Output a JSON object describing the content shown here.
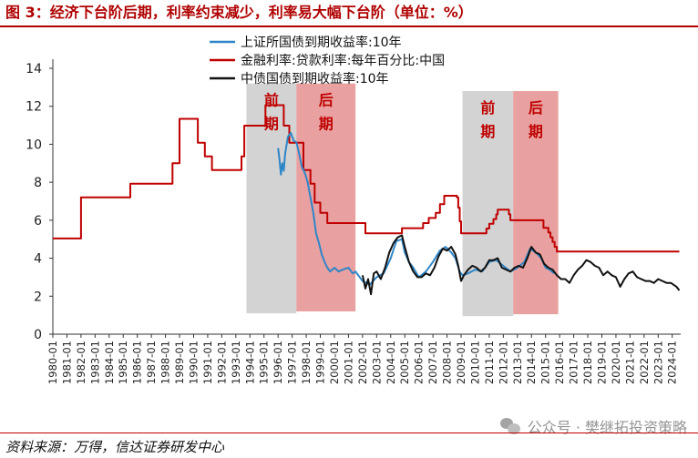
{
  "header": {
    "title": "图 3：经济下台阶后期，利率约束减少，利率易大幅下台阶（单位：%）"
  },
  "footer": {
    "source": "资料来源：万得，信达证券研发中心",
    "watermark": "公众号 · 樊继拓投资策略"
  },
  "chart_data": {
    "type": "line",
    "title": "图 3：经济下台阶后期，利率约束减少，利率易大幅下台阶（单位：%）",
    "xlabel": "",
    "ylabel": "",
    "ylim": [
      0,
      14
    ],
    "yticks": [
      0,
      2,
      4,
      6,
      8,
      10,
      12,
      14
    ],
    "xlim": [
      1980,
      2024.6
    ],
    "categories": [
      "1980-01",
      "1981-01",
      "1982-01",
      "1983-01",
      "1984-01",
      "1985-01",
      "1986-01",
      "1987-01",
      "1988-01",
      "1989-01",
      "1990-01",
      "1991-01",
      "1992-01",
      "1993-01",
      "1994-01",
      "1995-01",
      "1996-01",
      "1997-01",
      "1998-01",
      "1999-01",
      "2000-01",
      "2001-01",
      "2002-01",
      "2003-01",
      "2004-01",
      "2005-01",
      "2006-01",
      "2007-01",
      "2008-01",
      "2009-01",
      "2010-01",
      "2011-01",
      "2012-01",
      "2013-01",
      "2014-01",
      "2015-01",
      "2016-01",
      "2017-01",
      "2018-01",
      "2019-01",
      "2020-01",
      "2021-01",
      "2022-01",
      "2023-01",
      "2024-01"
    ],
    "legend": {
      "placement": "top",
      "items": [
        "上证所国债到期收益率:10年",
        "金融利率:贷款利率:每年百分比:中国",
        "中债国债到期收益率:10年"
      ]
    },
    "shaded_periods": [
      {
        "label_top": "前",
        "label_bottom": "期",
        "x0": 1993.75,
        "x1": 1997.3,
        "y0": 1.1,
        "y1": 13.2,
        "color": "#d3d3d3"
      },
      {
        "label_top": "后",
        "label_bottom": "期",
        "x0": 1997.3,
        "x1": 2001.5,
        "y0": 1.2,
        "y1": 13.2,
        "color": "#e8a0a0"
      },
      {
        "label_top": "前",
        "label_bottom": "期",
        "x0": 2009.1,
        "x1": 2012.7,
        "y0": 0.95,
        "y1": 12.8,
        "color": "#d3d3d3"
      },
      {
        "label_top": "后",
        "label_bottom": "期",
        "x0": 2012.7,
        "x1": 2015.9,
        "y0": 1.05,
        "y1": 12.8,
        "color": "#e8a0a0"
      }
    ],
    "series": [
      {
        "name": "金融利率:贷款利率:每年百分比:中国",
        "color": "#c00000",
        "points": [
          [
            1980,
            5.04
          ],
          [
            1982,
            5.04
          ],
          [
            1982,
            7.2
          ],
          [
            1985.5,
            7.2
          ],
          [
            1985.5,
            7.92
          ],
          [
            1988.5,
            7.92
          ],
          [
            1988.5,
            9.0
          ],
          [
            1989,
            9.0
          ],
          [
            1989,
            11.34
          ],
          [
            1990.3,
            11.34
          ],
          [
            1990.3,
            10.08
          ],
          [
            1990.8,
            10.08
          ],
          [
            1990.8,
            9.36
          ],
          [
            1991.3,
            9.36
          ],
          [
            1991.3,
            8.64
          ],
          [
            1993.4,
            8.64
          ],
          [
            1993.4,
            9.36
          ],
          [
            1993.6,
            9.36
          ],
          [
            1993.6,
            10.98
          ],
          [
            1995.1,
            10.98
          ],
          [
            1995.1,
            12.06
          ],
          [
            1996.4,
            12.06
          ],
          [
            1996.4,
            10.98
          ],
          [
            1996.8,
            10.98
          ],
          [
            1996.8,
            10.08
          ],
          [
            1997.8,
            10.08
          ],
          [
            1997.8,
            8.64
          ],
          [
            1998.3,
            8.64
          ],
          [
            1998.3,
            7.92
          ],
          [
            1998.6,
            7.92
          ],
          [
            1998.6,
            6.93
          ],
          [
            1999.0,
            6.93
          ],
          [
            1999.0,
            6.39
          ],
          [
            1999.5,
            6.39
          ],
          [
            1999.5,
            5.85
          ],
          [
            2002.2,
            5.85
          ],
          [
            2002.2,
            5.31
          ],
          [
            2004.8,
            5.31
          ],
          [
            2004.8,
            5.58
          ],
          [
            2006.3,
            5.58
          ],
          [
            2006.3,
            5.85
          ],
          [
            2006.7,
            5.85
          ],
          [
            2006.7,
            6.12
          ],
          [
            2007.2,
            6.12
          ],
          [
            2007.2,
            6.39
          ],
          [
            2007.5,
            6.39
          ],
          [
            2007.5,
            6.84
          ],
          [
            2007.8,
            6.84
          ],
          [
            2007.8,
            7.29
          ],
          [
            2008.7,
            7.29
          ],
          [
            2008.7,
            7.2
          ],
          [
            2008.8,
            7.2
          ],
          [
            2008.8,
            6.66
          ],
          [
            2008.9,
            6.66
          ],
          [
            2008.9,
            5.94
          ],
          [
            2009.0,
            5.94
          ],
          [
            2009.0,
            5.31
          ],
          [
            2010.8,
            5.31
          ],
          [
            2010.8,
            5.56
          ],
          [
            2011.0,
            5.56
          ],
          [
            2011.0,
            5.81
          ],
          [
            2011.3,
            5.81
          ],
          [
            2011.3,
            6.06
          ],
          [
            2011.5,
            6.06
          ],
          [
            2011.5,
            6.31
          ],
          [
            2011.6,
            6.31
          ],
          [
            2011.6,
            6.56
          ],
          [
            2012.4,
            6.56
          ],
          [
            2012.4,
            6.31
          ],
          [
            2012.5,
            6.31
          ],
          [
            2012.5,
            6.0
          ],
          [
            2014.85,
            6.0
          ],
          [
            2014.85,
            5.6
          ],
          [
            2015.2,
            5.6
          ],
          [
            2015.2,
            5.35
          ],
          [
            2015.35,
            5.35
          ],
          [
            2015.35,
            5.1
          ],
          [
            2015.5,
            5.1
          ],
          [
            2015.5,
            4.85
          ],
          [
            2015.65,
            4.85
          ],
          [
            2015.65,
            4.6
          ],
          [
            2015.8,
            4.6
          ],
          [
            2015.8,
            4.35
          ],
          [
            2024.5,
            4.35
          ]
        ]
      },
      {
        "name": "上证所国债到期收益率:10年",
        "color": "#2e86c8",
        "points": [
          [
            1996.0,
            9.8
          ],
          [
            1996.1,
            9.2
          ],
          [
            1996.2,
            8.4
          ],
          [
            1996.3,
            9.0
          ],
          [
            1996.4,
            8.6
          ],
          [
            1996.5,
            9.5
          ],
          [
            1996.7,
            10.4
          ],
          [
            1996.9,
            10.6
          ],
          [
            1997.1,
            10.2
          ],
          [
            1997.3,
            10.1
          ],
          [
            1997.5,
            9.5
          ],
          [
            1997.7,
            8.8
          ],
          [
            1997.9,
            8.5
          ],
          [
            1998.1,
            8.0
          ],
          [
            1998.3,
            7.2
          ],
          [
            1998.5,
            6.4
          ],
          [
            1998.7,
            5.3
          ],
          [
            1998.9,
            4.8
          ],
          [
            1999.1,
            4.2
          ],
          [
            1999.3,
            3.8
          ],
          [
            1999.5,
            3.5
          ],
          [
            1999.7,
            3.3
          ],
          [
            2000.0,
            3.5
          ],
          [
            2000.3,
            3.3
          ],
          [
            2000.6,
            3.4
          ],
          [
            2001.0,
            3.5
          ],
          [
            2001.3,
            3.2
          ],
          [
            2001.5,
            3.3
          ],
          [
            2002.0,
            2.8
          ],
          [
            2002.5,
            2.6
          ],
          [
            2003.0,
            3.0
          ],
          [
            2003.5,
            3.2
          ],
          [
            2004.0,
            4.0
          ],
          [
            2004.4,
            4.9
          ],
          [
            2004.8,
            5.0
          ],
          [
            2005.0,
            4.3
          ],
          [
            2005.3,
            3.8
          ],
          [
            2005.6,
            3.5
          ],
          [
            2006.0,
            3.0
          ],
          [
            2006.5,
            3.3
          ],
          [
            2007.0,
            3.8
          ],
          [
            2007.5,
            4.4
          ],
          [
            2007.9,
            4.6
          ],
          [
            2008.3,
            4.3
          ],
          [
            2008.6,
            4.0
          ],
          [
            2008.9,
            3.3
          ],
          [
            2009.1,
            3.1
          ],
          [
            2009.5,
            3.2
          ],
          [
            2010.0,
            3.4
          ],
          [
            2010.5,
            3.3
          ],
          [
            2011.0,
            3.8
          ],
          [
            2011.5,
            3.9
          ],
          [
            2012.0,
            3.6
          ],
          [
            2012.5,
            3.3
          ],
          [
            2013.0,
            3.5
          ],
          [
            2013.5,
            3.8
          ],
          [
            2013.9,
            4.5
          ],
          [
            2014.3,
            4.3
          ],
          [
            2014.7,
            4.0
          ],
          [
            2015.0,
            3.5
          ],
          [
            2015.3,
            3.4
          ],
          [
            2015.6,
            3.2
          ]
        ]
      },
      {
        "name": "中债国债到期收益率:10年",
        "color": "#111111",
        "points": [
          [
            2002.0,
            3.1
          ],
          [
            2002.2,
            2.4
          ],
          [
            2002.4,
            2.9
          ],
          [
            2002.6,
            2.1
          ],
          [
            2002.8,
            3.2
          ],
          [
            2003.0,
            3.3
          ],
          [
            2003.3,
            2.9
          ],
          [
            2003.6,
            3.5
          ],
          [
            2003.9,
            4.3
          ],
          [
            2004.2,
            4.8
          ],
          [
            2004.5,
            5.1
          ],
          [
            2004.8,
            5.2
          ],
          [
            2005.0,
            4.6
          ],
          [
            2005.3,
            3.8
          ],
          [
            2005.6,
            3.3
          ],
          [
            2005.9,
            3.0
          ],
          [
            2006.2,
            3.0
          ],
          [
            2006.5,
            3.2
          ],
          [
            2006.8,
            3.1
          ],
          [
            2007.1,
            3.5
          ],
          [
            2007.4,
            4.1
          ],
          [
            2007.7,
            4.5
          ],
          [
            2008.0,
            4.4
          ],
          [
            2008.3,
            4.6
          ],
          [
            2008.6,
            4.2
          ],
          [
            2008.8,
            3.6
          ],
          [
            2009.0,
            2.8
          ],
          [
            2009.2,
            3.1
          ],
          [
            2009.5,
            3.4
          ],
          [
            2009.8,
            3.6
          ],
          [
            2010.1,
            3.5
          ],
          [
            2010.4,
            3.3
          ],
          [
            2010.7,
            3.5
          ],
          [
            2011.0,
            3.9
          ],
          [
            2011.3,
            3.9
          ],
          [
            2011.6,
            4.0
          ],
          [
            2011.9,
            3.5
          ],
          [
            2012.2,
            3.4
          ],
          [
            2012.5,
            3.3
          ],
          [
            2012.8,
            3.5
          ],
          [
            2013.1,
            3.6
          ],
          [
            2013.4,
            3.5
          ],
          [
            2013.7,
            4.0
          ],
          [
            2014.0,
            4.6
          ],
          [
            2014.3,
            4.3
          ],
          [
            2014.6,
            4.2
          ],
          [
            2014.9,
            3.7
          ],
          [
            2015.2,
            3.5
          ],
          [
            2015.5,
            3.4
          ],
          [
            2015.8,
            3.1
          ],
          [
            2016.1,
            2.9
          ],
          [
            2016.4,
            2.9
          ],
          [
            2016.7,
            2.7
          ],
          [
            2017.0,
            3.1
          ],
          [
            2017.3,
            3.4
          ],
          [
            2017.6,
            3.6
          ],
          [
            2017.9,
            3.9
          ],
          [
            2018.2,
            3.8
          ],
          [
            2018.5,
            3.6
          ],
          [
            2018.8,
            3.5
          ],
          [
            2019.1,
            3.1
          ],
          [
            2019.4,
            3.3
          ],
          [
            2019.7,
            3.1
          ],
          [
            2020.0,
            3.0
          ],
          [
            2020.3,
            2.5
          ],
          [
            2020.6,
            2.9
          ],
          [
            2020.9,
            3.2
          ],
          [
            2021.2,
            3.3
          ],
          [
            2021.5,
            3.0
          ],
          [
            2021.8,
            2.9
          ],
          [
            2022.1,
            2.8
          ],
          [
            2022.4,
            2.8
          ],
          [
            2022.7,
            2.7
          ],
          [
            2023.0,
            2.9
          ],
          [
            2023.3,
            2.8
          ],
          [
            2023.6,
            2.7
          ],
          [
            2023.9,
            2.7
          ],
          [
            2024.1,
            2.6
          ],
          [
            2024.3,
            2.5
          ],
          [
            2024.5,
            2.3
          ]
        ]
      }
    ]
  }
}
